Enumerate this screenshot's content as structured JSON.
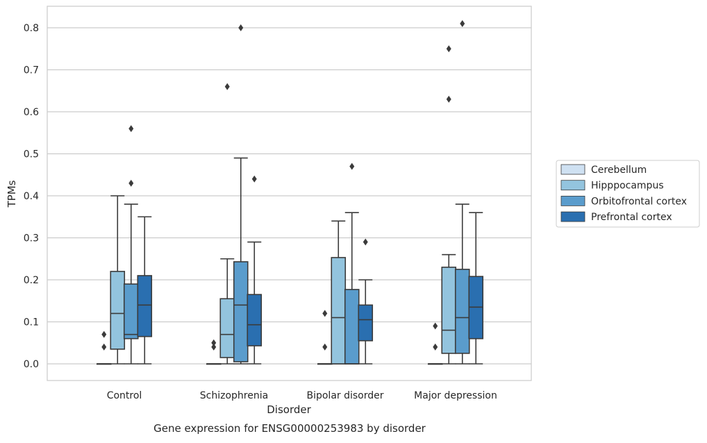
{
  "chart_data": {
    "type": "box",
    "xlabel": "Disorder",
    "ylabel": "TPMs",
    "caption": "Gene expression for ENSG00000253983 by disorder",
    "ylim": [
      -0.04,
      0.85
    ],
    "yticks": [
      "0.0",
      "0.1",
      "0.2",
      "0.3",
      "0.4",
      "0.5",
      "0.6",
      "0.7",
      "0.8"
    ],
    "grid": true,
    "legend_position": "right",
    "categories": [
      "Control",
      "Schizophrenia",
      "Bipolar disorder",
      "Major depression"
    ],
    "series": [
      {
        "name": "Cerebellum",
        "color": "#cfe1f2",
        "boxes": [
          {
            "q1": 0.0,
            "median": 0.0,
            "q3": 0.0,
            "whisker_low": 0.0,
            "whisker_high": 0.0,
            "outliers": [
              0.04,
              0.07
            ]
          },
          {
            "q1": 0.0,
            "median": 0.0,
            "q3": 0.0,
            "whisker_low": 0.0,
            "whisker_high": 0.0,
            "outliers": [
              0.04,
              0.05
            ]
          },
          {
            "q1": 0.0,
            "median": 0.0,
            "q3": 0.0,
            "whisker_low": 0.0,
            "whisker_high": 0.0,
            "outliers": [
              0.04,
              0.12
            ]
          },
          {
            "q1": 0.0,
            "median": 0.0,
            "q3": 0.0,
            "whisker_low": 0.0,
            "whisker_high": 0.0,
            "outliers": [
              0.04,
              0.09
            ]
          }
        ]
      },
      {
        "name": "Hipppocampus",
        "color": "#93c4de",
        "boxes": [
          {
            "q1": 0.035,
            "median": 0.12,
            "q3": 0.22,
            "whisker_low": 0.0,
            "whisker_high": 0.4,
            "outliers": []
          },
          {
            "q1": 0.015,
            "median": 0.07,
            "q3": 0.155,
            "whisker_low": 0.0,
            "whisker_high": 0.25,
            "outliers": [
              0.66
            ]
          },
          {
            "q1": 0.0,
            "median": 0.11,
            "q3": 0.253,
            "whisker_low": 0.0,
            "whisker_high": 0.34,
            "outliers": []
          },
          {
            "q1": 0.025,
            "median": 0.08,
            "q3": 0.23,
            "whisker_low": 0.0,
            "whisker_high": 0.26,
            "outliers": [
              0.63,
              0.75
            ]
          }
        ]
      },
      {
        "name": "Orbitofrontal cortex",
        "color": "#5a9ccc",
        "boxes": [
          {
            "q1": 0.06,
            "median": 0.07,
            "q3": 0.19,
            "whisker_low": 0.0,
            "whisker_high": 0.38,
            "outliers": [
              0.43,
              0.56
            ]
          },
          {
            "q1": 0.005,
            "median": 0.14,
            "q3": 0.243,
            "whisker_low": 0.0,
            "whisker_high": 0.49,
            "outliers": [
              0.8
            ]
          },
          {
            "q1": 0.0,
            "median": 0.0,
            "q3": 0.177,
            "whisker_low": 0.0,
            "whisker_high": 0.36,
            "outliers": [
              0.47
            ]
          },
          {
            "q1": 0.025,
            "median": 0.11,
            "q3": 0.225,
            "whisker_low": 0.0,
            "whisker_high": 0.38,
            "outliers": [
              0.81
            ]
          }
        ]
      },
      {
        "name": "Prefrontal cortex",
        "color": "#2a6fb0",
        "boxes": [
          {
            "q1": 0.065,
            "median": 0.14,
            "q3": 0.21,
            "whisker_low": 0.0,
            "whisker_high": 0.35,
            "outliers": []
          },
          {
            "q1": 0.043,
            "median": 0.093,
            "q3": 0.165,
            "whisker_low": 0.0,
            "whisker_high": 0.29,
            "outliers": [
              0.44
            ]
          },
          {
            "q1": 0.055,
            "median": 0.105,
            "q3": 0.14,
            "whisker_low": 0.0,
            "whisker_high": 0.2,
            "outliers": [
              0.29
            ]
          },
          {
            "q1": 0.06,
            "median": 0.135,
            "q3": 0.208,
            "whisker_low": 0.0,
            "whisker_high": 0.36,
            "outliers": []
          }
        ]
      }
    ]
  }
}
